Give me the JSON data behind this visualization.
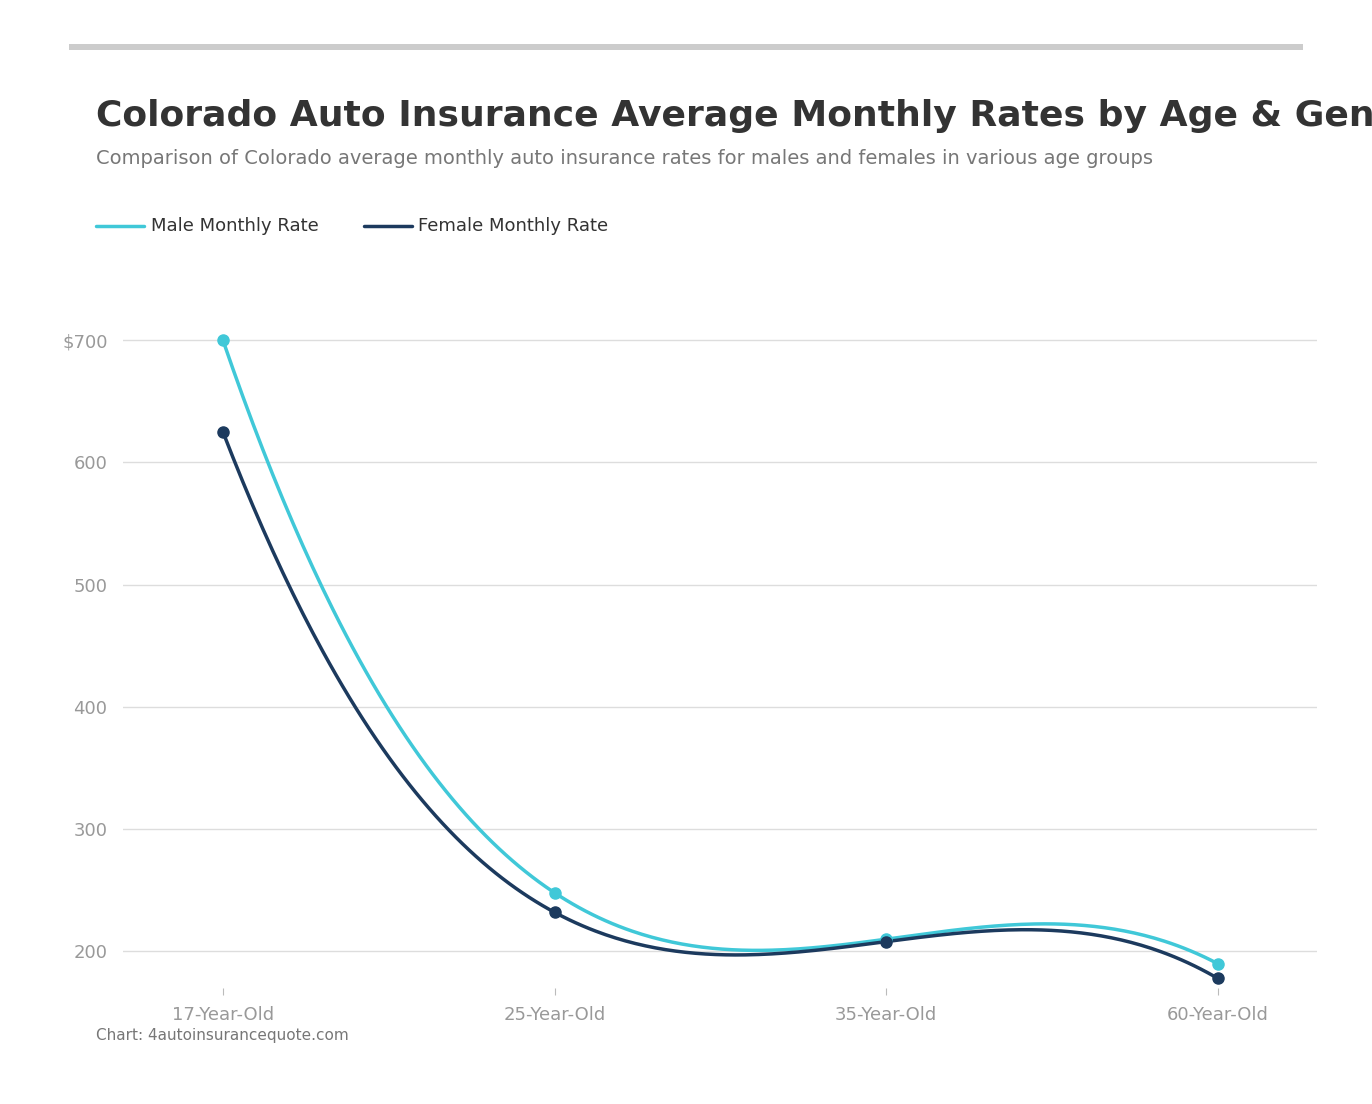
{
  "title": "Colorado Auto Insurance Average Monthly Rates by Age & Gender",
  "subtitle": "Comparison of Colorado average monthly auto insurance rates for males and females in various age groups",
  "categories": [
    "17-Year-Old",
    "25-Year-Old",
    "35-Year-Old",
    "60-Year-Old"
  ],
  "male_values": [
    700,
    248,
    210,
    190
  ],
  "female_values": [
    625,
    232,
    208,
    178
  ],
  "male_color": "#40C8D8",
  "female_color": "#1C3A5E",
  "male_label": "Male Monthly Rate",
  "female_label": "Female Monthly Rate",
  "yticks": [
    200,
    300,
    400,
    500,
    600,
    700
  ],
  "ylim": [
    170,
    730
  ],
  "background_color": "#ffffff",
  "grid_color": "#dddddd",
  "title_color": "#333333",
  "subtitle_color": "#777777",
  "tick_label_color": "#999999",
  "top_bar_color": "#cccccc",
  "footer_text": "Chart: 4autoinsurancequote.com",
  "title_fontsize": 26,
  "subtitle_fontsize": 14,
  "legend_fontsize": 13,
  "axis_fontsize": 13,
  "line_width": 2.5,
  "marker_size": 8
}
